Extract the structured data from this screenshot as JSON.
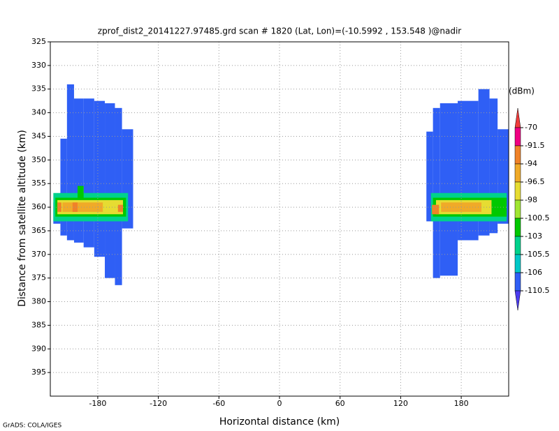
{
  "chart_data": {
    "type": "heatmap",
    "title": "zprof_dist2_20141227.97485.grd  scan # 1820  (Lat, Lon)=(-10.5992 , 153.548 )@nadir",
    "xlabel": "Horizontal distance (km)",
    "ylabel": "Distance from satellite altitude (km)",
    "footer": "GrADS: COLA/IGES",
    "xlim": [
      -227,
      227
    ],
    "xticks": [
      -180,
      -120,
      -60,
      0,
      60,
      120,
      180
    ],
    "ylim": [
      325,
      400
    ],
    "y_inverted": true,
    "yticks": [
      325,
      330,
      335,
      340,
      345,
      350,
      355,
      360,
      365,
      370,
      375,
      380,
      385,
      390,
      395
    ],
    "grid": true,
    "colorbar": {
      "label": "(dBm)",
      "levels": [
        -70,
        -91.5,
        -94,
        -96.5,
        -98,
        -100.5,
        -103,
        -105.5,
        -106,
        -110.5
      ],
      "colors": [
        "#f03c3c",
        "#f00082",
        "#f08228",
        "#f0aa28",
        "#e6dc32",
        "#a0e632",
        "#00c800",
        "#00d28c",
        "#00c8c8",
        "#2f5ff5",
        "#4b3cf0"
      ]
    },
    "cells": [
      {
        "x0": -224,
        "x1": -217,
        "y0": 359,
        "y1": 363.5,
        "value": -108
      },
      {
        "x0": -217,
        "x1": -210.5,
        "y0": 345.5,
        "y1": 366,
        "value": -108
      },
      {
        "x0": -210.5,
        "x1": -203.5,
        "y0": 334,
        "y1": 367,
        "value": -108
      },
      {
        "x0": -203.5,
        "x1": -194,
        "y0": 337,
        "y1": 367.5,
        "value": -108
      },
      {
        "x0": -194,
        "x1": -183.5,
        "y0": 337,
        "y1": 368.5,
        "value": -108
      },
      {
        "x0": -183.5,
        "x1": -173,
        "y0": 337.5,
        "y1": 370.5,
        "value": -108
      },
      {
        "x0": -173,
        "x1": -163,
        "y0": 338,
        "y1": 375,
        "value": -108
      },
      {
        "x0": -163,
        "x1": -156,
        "y0": 339,
        "y1": 376.5,
        "value": -108
      },
      {
        "x0": -156,
        "x1": -145,
        "y0": 343.5,
        "y1": 364.5,
        "value": -108
      },
      {
        "x0": -224,
        "x1": -150,
        "y0": 357,
        "y1": 363,
        "value": -105
      },
      {
        "x0": -222,
        "x1": -152,
        "y0": 358,
        "y1": 362,
        "value": -101
      },
      {
        "x0": -200,
        "x1": -194,
        "y0": 355.5,
        "y1": 358,
        "value": -101
      },
      {
        "x0": -220,
        "x1": -155,
        "y0": 358.5,
        "y1": 361.5,
        "value": -97.5
      },
      {
        "x0": -215,
        "x1": -175,
        "y0": 359,
        "y1": 361,
        "value": -95
      },
      {
        "x0": -220,
        "x1": -216,
        "y0": 359,
        "y1": 361,
        "value": -92
      },
      {
        "x0": -205,
        "x1": -200,
        "y0": 359,
        "y1": 361,
        "value": -92
      },
      {
        "x0": -160,
        "x1": -155,
        "y0": 359.5,
        "y1": 361,
        "value": -92
      },
      {
        "x0": 145.5,
        "x1": 152,
        "y0": 344,
        "y1": 363,
        "value": -108
      },
      {
        "x0": 152,
        "x1": 159,
        "y0": 339,
        "y1": 375,
        "value": -108
      },
      {
        "x0": 159,
        "x1": 176.5,
        "y0": 338,
        "y1": 374.5,
        "value": -108
      },
      {
        "x0": 176.5,
        "x1": 197,
        "y0": 337.5,
        "y1": 367,
        "value": -108
      },
      {
        "x0": 197,
        "x1": 208,
        "y0": 335,
        "y1": 366,
        "value": -108
      },
      {
        "x0": 208,
        "x1": 216,
        "y0": 337,
        "y1": 365.5,
        "value": -108
      },
      {
        "x0": 216,
        "x1": 227,
        "y0": 343.5,
        "y1": 363.5,
        "value": -108
      },
      {
        "x0": 150,
        "x1": 225,
        "y0": 357,
        "y1": 363,
        "value": -105
      },
      {
        "x0": 152,
        "x1": 225,
        "y0": 358,
        "y1": 362,
        "value": -101
      },
      {
        "x0": 155,
        "x1": 210,
        "y0": 358.5,
        "y1": 361.5,
        "value": -97.5
      },
      {
        "x0": 160,
        "x1": 200,
        "y0": 359,
        "y1": 361,
        "value": -95
      },
      {
        "x0": 151,
        "x1": 158,
        "y0": 359.5,
        "y1": 361.5,
        "value": -92
      }
    ]
  }
}
